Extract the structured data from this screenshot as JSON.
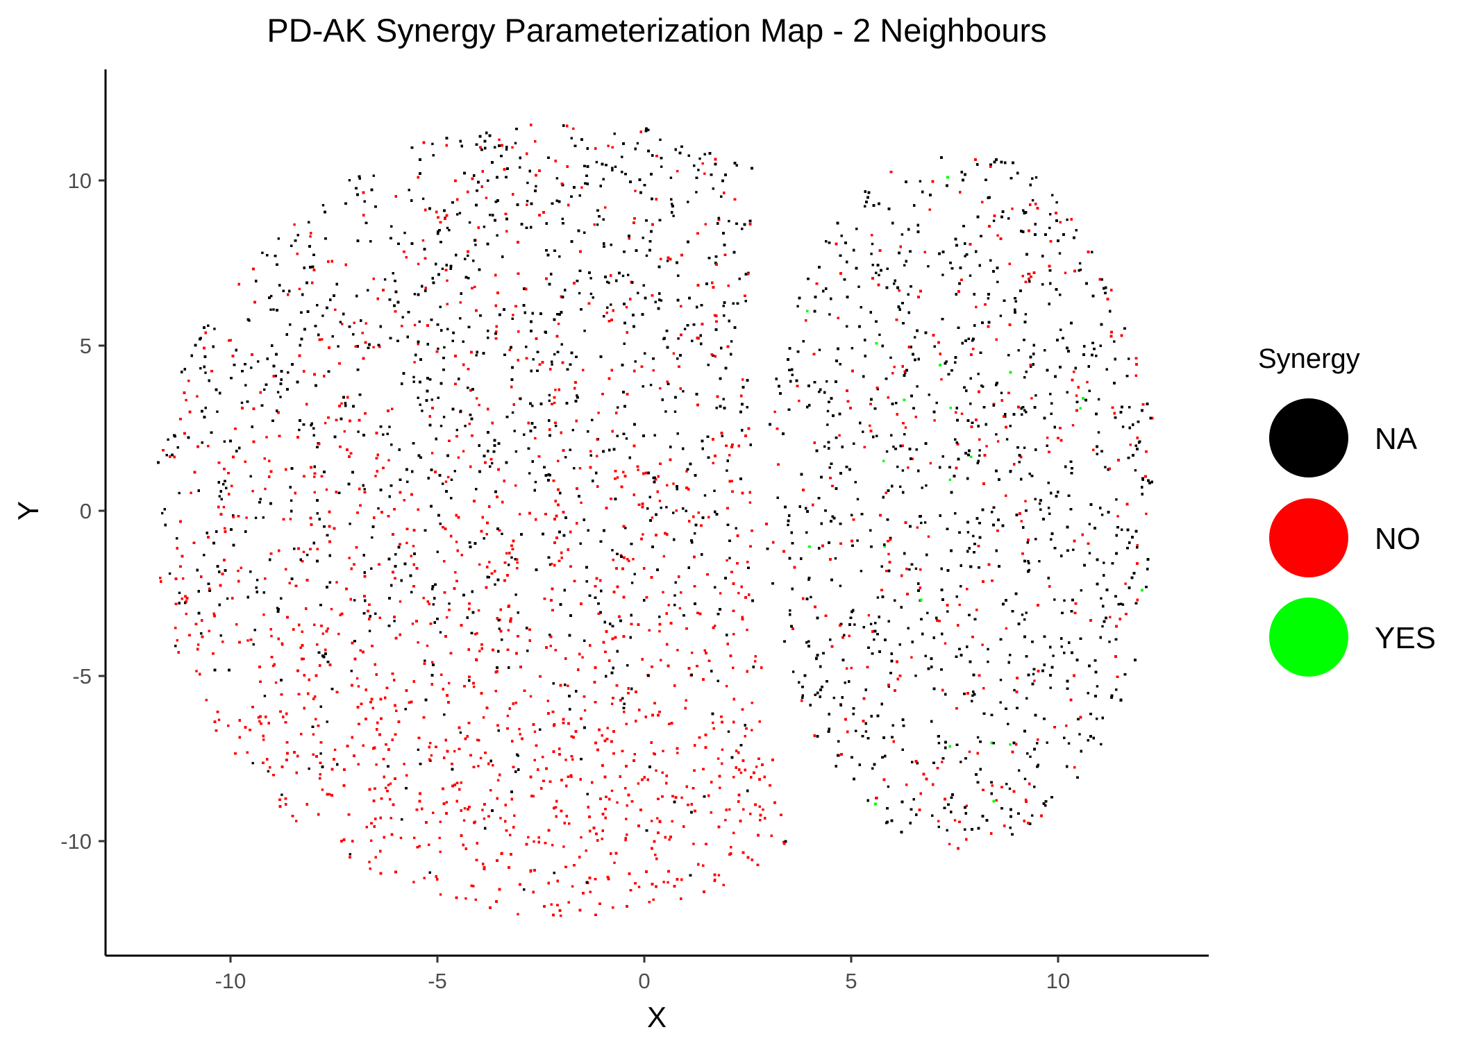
{
  "chart_data": {
    "type": "scatter",
    "title": "PD-AK Synergy Parameterization Map - 2 Neighbours",
    "xlabel": "X",
    "ylabel": "Y",
    "xlim": [
      -13,
      13.5
    ],
    "ylim": [
      -13.5,
      13.4
    ],
    "x_ticks": [
      -10,
      -5,
      0,
      5,
      10
    ],
    "y_ticks": [
      -10,
      -5,
      0,
      5,
      10
    ],
    "x_tick_labels": [
      "-10",
      "-5",
      "0",
      "5",
      "10"
    ],
    "y_tick_labels": [
      "-10",
      "-5",
      "0",
      "5",
      "10"
    ],
    "grid": false,
    "legend": {
      "title": "Synergy",
      "position": "right",
      "entries": [
        {
          "label": "NA",
          "color": "#000000"
        },
        {
          "label": "NO",
          "color": "#ff0000"
        },
        {
          "label": "YES",
          "color": "#00ff00"
        }
      ]
    },
    "series": [
      {
        "name": "NA",
        "color": "#000000",
        "regions": [
          {
            "lobe": "left",
            "center": [
              -2.5,
              1.5
            ],
            "rx": 8.5,
            "ry": 9.5,
            "density": "high in upper half, fading below y=-3"
          },
          {
            "lobe": "right",
            "center": [
              7.5,
              1.0
            ],
            "rx": 4.8,
            "ry": 10.0,
            "density": "high throughout"
          }
        ]
      },
      {
        "name": "NO",
        "color": "#ff0000",
        "regions": [
          {
            "lobe": "left",
            "center": [
              -2.5,
              -1.0
            ],
            "rx": 9.0,
            "ry": 11.0,
            "density": "mixed above, dominant below y=-3"
          },
          {
            "lobe": "right",
            "center": [
              7.5,
              0.0
            ],
            "rx": 4.6,
            "ry": 9.5,
            "density": "sparse, mixed"
          }
        ]
      },
      {
        "name": "YES",
        "color": "#00ff00",
        "regions": [
          {
            "lobe": "right",
            "center": [
              9.0,
              -4.0
            ],
            "rx": 2.5,
            "ry": 4.0,
            "density": "very sparse"
          }
        ]
      }
    ],
    "extent": {
      "x": [
        -11.8,
        12.4
      ],
      "y": [
        -12.3,
        12.1
      ]
    }
  }
}
